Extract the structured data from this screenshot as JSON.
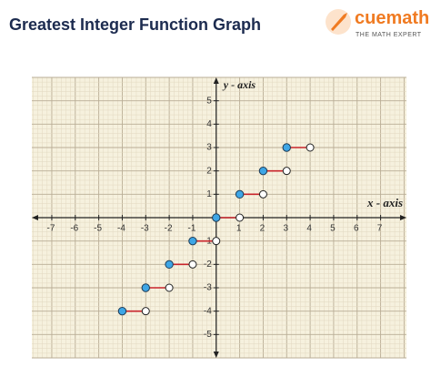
{
  "header": {
    "title": "Greatest Integer Function Graph",
    "logo": "cuemath",
    "tagline": "THE MATH EXPERT"
  },
  "chart_data": {
    "type": "step",
    "x_label": "x - axis",
    "y_label": "y - axis",
    "xlim": [
      -7.85,
      8.1
    ],
    "ylim": [
      -6,
      6
    ],
    "xticks": [
      -7,
      -6,
      -5,
      -4,
      -3,
      -2,
      -1,
      1,
      2,
      3,
      4,
      5,
      6,
      7
    ],
    "yticks": [
      -5,
      -4,
      -3,
      -2,
      -1,
      1,
      2,
      3,
      4,
      5
    ],
    "grid": true,
    "color": "#c8242b",
    "closed_color": "#3ea6e6",
    "segments": [
      {
        "x": [
          -4,
          -3
        ],
        "y": -4
      },
      {
        "x": [
          -3,
          -2
        ],
        "y": -3
      },
      {
        "x": [
          -2,
          -1
        ],
        "y": -2
      },
      {
        "x": [
          -1,
          0
        ],
        "y": -1
      },
      {
        "x": [
          0,
          1
        ],
        "y": 0
      },
      {
        "x": [
          1,
          2
        ],
        "y": 1
      },
      {
        "x": [
          2,
          3
        ],
        "y": 2
      },
      {
        "x": [
          3,
          4
        ],
        "y": 3
      }
    ]
  }
}
